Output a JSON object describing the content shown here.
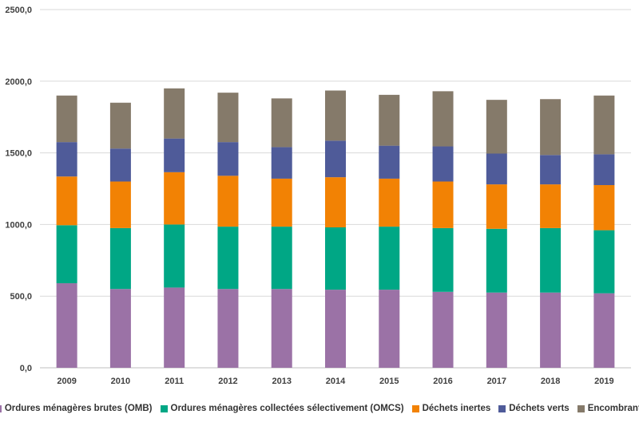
{
  "chart_data": {
    "type": "bar",
    "stacked": true,
    "categories": [
      "2009",
      "2010",
      "2011",
      "2012",
      "2013",
      "2014",
      "2015",
      "2016",
      "2017",
      "2018",
      "2019"
    ],
    "series": [
      {
        "name": "Ordures ménagères brutes (OMB)",
        "color": "#9b72a6",
        "values": [
          590,
          550,
          560,
          550,
          550,
          545,
          545,
          530,
          525,
          525,
          520
        ]
      },
      {
        "name": "Ordures ménagères collectées sélectivement (OMCS)",
        "color": "#00a785",
        "values": [
          405,
          425,
          440,
          435,
          435,
          435,
          440,
          445,
          445,
          450,
          440
        ]
      },
      {
        "name": "Déchets inertes",
        "color": "#f28204",
        "values": [
          340,
          325,
          365,
          355,
          335,
          350,
          335,
          325,
          310,
          305,
          315
        ]
      },
      {
        "name": "Déchets verts",
        "color": "#4f5b99",
        "values": [
          240,
          230,
          235,
          235,
          220,
          255,
          230,
          245,
          215,
          205,
          215
        ]
      },
      {
        "name": "Encombrants",
        "color": "#857a6a",
        "values": [
          325,
          320,
          350,
          345,
          340,
          350,
          355,
          385,
          375,
          390,
          410
        ]
      }
    ],
    "ylim": [
      0,
      2500
    ],
    "yticks": [
      "0,0",
      "500,0",
      "1000,0",
      "1500,0",
      "2000,0",
      "2500,0"
    ],
    "grid": true,
    "legend_position": "bottom"
  }
}
